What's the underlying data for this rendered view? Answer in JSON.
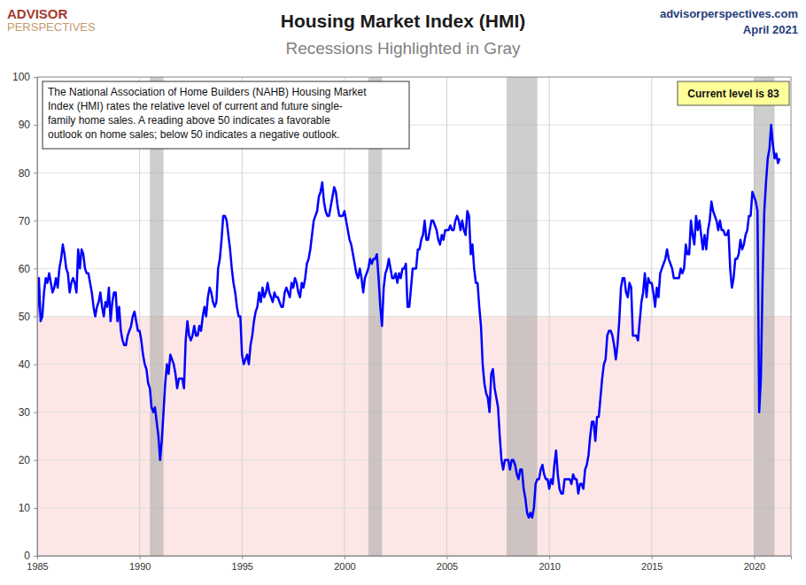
{
  "chart_data": {
    "type": "line",
    "title": "Housing Market Index (HMI)",
    "subtitle": "Recessions Highlighted in Gray",
    "logo": [
      "ADVISOR",
      "PERSPECTIVES"
    ],
    "source": "advisorperspectives.com",
    "date": "April 2021",
    "note_lines": [
      "The National Association of Home Builders (NAHB) Housing Market",
      "Index (HMI) rates the relative level of current and future single-",
      "family home sales. A reading above 50 indicates a favorable",
      "outlook on home sales; below 50 indicates a negative outlook."
    ],
    "callout": "Current level is 83",
    "color": "#0000ff",
    "grid": true,
    "threshold": 50,
    "recessions": [
      {
        "start": 1990.5,
        "end": 1991.167
      },
      {
        "start": 2001.167,
        "end": 2001.833
      },
      {
        "start": 2007.917,
        "end": 2009.417
      },
      {
        "start": 2020.0,
        "end": 2021.0
      }
    ],
    "xlim": [
      1985,
      2021.8
    ],
    "xticks": [
      1985,
      1990,
      1995,
      2000,
      2005,
      2010,
      2015,
      2020
    ],
    "ylim": [
      0,
      100
    ],
    "yticks": [
      0,
      10,
      20,
      30,
      40,
      50,
      60,
      70,
      80,
      90,
      100
    ],
    "x": [
      1985,
      1985.083,
      1985.167,
      1985.25,
      1985.333,
      1985.417,
      1985.5,
      1985.583,
      1985.667,
      1985.75,
      1985.833,
      1985.917,
      1986,
      1986.083,
      1986.167,
      1986.25,
      1986.333,
      1986.417,
      1986.5,
      1986.583,
      1986.667,
      1986.75,
      1986.833,
      1986.917,
      1987,
      1987.083,
      1987.167,
      1987.25,
      1987.333,
      1987.417,
      1987.5,
      1987.583,
      1987.667,
      1987.75,
      1987.833,
      1987.917,
      1988,
      1988.083,
      1988.167,
      1988.25,
      1988.333,
      1988.417,
      1988.5,
      1988.583,
      1988.667,
      1988.75,
      1988.833,
      1988.917,
      1989,
      1989.083,
      1989.167,
      1989.25,
      1989.333,
      1989.417,
      1989.5,
      1989.583,
      1989.667,
      1989.75,
      1989.833,
      1989.917,
      1990,
      1990.083,
      1990.167,
      1990.25,
      1990.333,
      1990.417,
      1990.5,
      1990.583,
      1990.667,
      1990.75,
      1990.833,
      1990.917,
      1991,
      1991.083,
      1991.167,
      1991.25,
      1991.333,
      1991.417,
      1991.5,
      1991.583,
      1991.667,
      1991.75,
      1991.833,
      1991.917,
      1992,
      1992.083,
      1992.167,
      1992.25,
      1992.333,
      1992.417,
      1992.5,
      1992.583,
      1992.667,
      1992.75,
      1992.833,
      1992.917,
      1993,
      1993.083,
      1993.167,
      1993.25,
      1993.333,
      1993.417,
      1993.5,
      1993.583,
      1993.667,
      1993.75,
      1993.833,
      1993.917,
      1994,
      1994.083,
      1994.167,
      1994.25,
      1994.333,
      1994.417,
      1994.5,
      1994.583,
      1994.667,
      1994.75,
      1994.833,
      1994.917,
      1995,
      1995.083,
      1995.167,
      1995.25,
      1995.333,
      1995.417,
      1995.5,
      1995.583,
      1995.667,
      1995.75,
      1995.833,
      1995.917,
      1996,
      1996.083,
      1996.167,
      1996.25,
      1996.333,
      1996.417,
      1996.5,
      1996.583,
      1996.667,
      1996.75,
      1996.833,
      1996.917,
      1997,
      1997.083,
      1997.167,
      1997.25,
      1997.333,
      1997.417,
      1997.5,
      1997.583,
      1997.667,
      1997.75,
      1997.833,
      1997.917,
      1998,
      1998.083,
      1998.167,
      1998.25,
      1998.333,
      1998.417,
      1998.5,
      1998.583,
      1998.667,
      1998.75,
      1998.833,
      1998.917,
      1999,
      1999.083,
      1999.167,
      1999.25,
      1999.333,
      1999.417,
      1999.5,
      1999.583,
      1999.667,
      1999.75,
      1999.833,
      1999.917,
      2000,
      2000.083,
      2000.167,
      2000.25,
      2000.333,
      2000.417,
      2000.5,
      2000.583,
      2000.667,
      2000.75,
      2000.833,
      2000.917,
      2001,
      2001.083,
      2001.167,
      2001.25,
      2001.333,
      2001.417,
      2001.5,
      2001.583,
      2001.667,
      2001.75,
      2001.833,
      2001.917,
      2002,
      2002.083,
      2002.167,
      2002.25,
      2002.333,
      2002.417,
      2002.5,
      2002.583,
      2002.667,
      2002.75,
      2002.833,
      2002.917,
      2003,
      2003.083,
      2003.167,
      2003.25,
      2003.333,
      2003.417,
      2003.5,
      2003.583,
      2003.667,
      2003.75,
      2003.833,
      2003.917,
      2004,
      2004.083,
      2004.167,
      2004.25,
      2004.333,
      2004.417,
      2004.5,
      2004.583,
      2004.667,
      2004.75,
      2004.833,
      2004.917,
      2005,
      2005.083,
      2005.167,
      2005.25,
      2005.333,
      2005.417,
      2005.5,
      2005.583,
      2005.667,
      2005.75,
      2005.833,
      2005.917,
      2006,
      2006.083,
      2006.167,
      2006.25,
      2006.333,
      2006.417,
      2006.5,
      2006.583,
      2006.667,
      2006.75,
      2006.833,
      2006.917,
      2007,
      2007.083,
      2007.167,
      2007.25,
      2007.333,
      2007.417,
      2007.5,
      2007.583,
      2007.667,
      2007.75,
      2007.833,
      2007.917,
      2008,
      2008.083,
      2008.167,
      2008.25,
      2008.333,
      2008.417,
      2008.5,
      2008.583,
      2008.667,
      2008.75,
      2008.833,
      2008.917,
      2009,
      2009.083,
      2009.167,
      2009.25,
      2009.333,
      2009.417,
      2009.5,
      2009.583,
      2009.667,
      2009.75,
      2009.833,
      2009.917,
      2010,
      2010.083,
      2010.167,
      2010.25,
      2010.333,
      2010.417,
      2010.5,
      2010.583,
      2010.667,
      2010.75,
      2010.833,
      2010.917,
      2011,
      2011.083,
      2011.167,
      2011.25,
      2011.333,
      2011.417,
      2011.5,
      2011.583,
      2011.667,
      2011.75,
      2011.833,
      2011.917,
      2012,
      2012.083,
      2012.167,
      2012.25,
      2012.333,
      2012.417,
      2012.5,
      2012.583,
      2012.667,
      2012.75,
      2012.833,
      2012.917,
      2013,
      2013.083,
      2013.167,
      2013.25,
      2013.333,
      2013.417,
      2013.5,
      2013.583,
      2013.667,
      2013.75,
      2013.833,
      2013.917,
      2014,
      2014.083,
      2014.167,
      2014.25,
      2014.333,
      2014.417,
      2014.5,
      2014.583,
      2014.667,
      2014.75,
      2014.833,
      2014.917,
      2015,
      2015.083,
      2015.167,
      2015.25,
      2015.333,
      2015.417,
      2015.5,
      2015.583,
      2015.667,
      2015.75,
      2015.833,
      2015.917,
      2016,
      2016.083,
      2016.167,
      2016.25,
      2016.333,
      2016.417,
      2016.5,
      2016.583,
      2016.667,
      2016.75,
      2016.833,
      2016.917,
      2017,
      2017.083,
      2017.167,
      2017.25,
      2017.333,
      2017.417,
      2017.5,
      2017.583,
      2017.667,
      2017.75,
      2017.833,
      2017.917,
      2018,
      2018.083,
      2018.167,
      2018.25,
      2018.333,
      2018.417,
      2018.5,
      2018.583,
      2018.667,
      2018.75,
      2018.833,
      2018.917,
      2019,
      2019.083,
      2019.167,
      2019.25,
      2019.333,
      2019.417,
      2019.5,
      2019.583,
      2019.667,
      2019.75,
      2019.833,
      2019.917,
      2020,
      2020.083,
      2020.167,
      2020.25,
      2020.333,
      2020.417,
      2020.5,
      2020.583,
      2020.667,
      2020.75,
      2020.833,
      2020.917,
      2021,
      2021.083,
      2021.167,
      2021.25
    ],
    "values": [
      50,
      58,
      49,
      50,
      55,
      58,
      57,
      59,
      57,
      55,
      56,
      58,
      56,
      60,
      62,
      65,
      63,
      60,
      59,
      55,
      57,
      58,
      57,
      55,
      64,
      60,
      64,
      63,
      60,
      59,
      59,
      57,
      55,
      52,
      50,
      52,
      53,
      55,
      52,
      50,
      53,
      52,
      56,
      49,
      53,
      55,
      55,
      49,
      52,
      47,
      45,
      44,
      44,
      46,
      47,
      48,
      50,
      51,
      49,
      47,
      47,
      45,
      42,
      40,
      39,
      36,
      35,
      31,
      30,
      31,
      28,
      25,
      20,
      24,
      30,
      36,
      40,
      38,
      42,
      41,
      40,
      38,
      35,
      37,
      37,
      37,
      35,
      45,
      49,
      46,
      45,
      46,
      48,
      46,
      46,
      48,
      47,
      50,
      52,
      50,
      54,
      56,
      55,
      53,
      52,
      53,
      60,
      62,
      66,
      71,
      71,
      70,
      67,
      64,
      60,
      57,
      55,
      52,
      50,
      50,
      42,
      40,
      41,
      42,
      40,
      44,
      46,
      49,
      51,
      52,
      55,
      53,
      56,
      54,
      55,
      57,
      55,
      54,
      53,
      55,
      54,
      54,
      53,
      52,
      52,
      55,
      56,
      55,
      54,
      57,
      56,
      58,
      57,
      55,
      54,
      57,
      56,
      58,
      61,
      62,
      64,
      67,
      70,
      71,
      72,
      75,
      76,
      78,
      74,
      72,
      71,
      71,
      73,
      75,
      77,
      76,
      73,
      71,
      71,
      71,
      72,
      70,
      68,
      66,
      65,
      63,
      61,
      59,
      58,
      60,
      58,
      55,
      58,
      59,
      60,
      62,
      61,
      62,
      62,
      63,
      58,
      52,
      48,
      56,
      59,
      60,
      62,
      60,
      58,
      58,
      59,
      57,
      59,
      58,
      60,
      60,
      61,
      52,
      52,
      56,
      60,
      60,
      60,
      64,
      64,
      66,
      67,
      70,
      66,
      66,
      68,
      70,
      70,
      69,
      68,
      66,
      65,
      67,
      66,
      68,
      68,
      68,
      69,
      68,
      68,
      70,
      71,
      70,
      68,
      70,
      68,
      67,
      72,
      71,
      63,
      65,
      60,
      57,
      57,
      52,
      48,
      40,
      36,
      34,
      33,
      30,
      38,
      39,
      35,
      33,
      31,
      25,
      20,
      18,
      20,
      20,
      20,
      18,
      20,
      20,
      19,
      17,
      16,
      18,
      18,
      14,
      12,
      9,
      8,
      9,
      8,
      10,
      15,
      16,
      16,
      18,
      19,
      17,
      16,
      16,
      14,
      16,
      15,
      19,
      22,
      17,
      14,
      13,
      13,
      16,
      16,
      16,
      16,
      15,
      17,
      16,
      16,
      13,
      15,
      15,
      14,
      18,
      19,
      21,
      25,
      28,
      28,
      24,
      29,
      29,
      33,
      37,
      40,
      41,
      46,
      47,
      47,
      46,
      44,
      41,
      44,
      49,
      56,
      58,
      58,
      55,
      54,
      57,
      56,
      46,
      46,
      46,
      45,
      49,
      53,
      55,
      59,
      54,
      58,
      57,
      57,
      55,
      52,
      56,
      54,
      59,
      60,
      61,
      62,
      64,
      62,
      61,
      60,
      58,
      58,
      58,
      58,
      60,
      59,
      60,
      65,
      63,
      63,
      70,
      67,
      65,
      71,
      68,
      70,
      67,
      64,
      67,
      64,
      68,
      70,
      74,
      72,
      71,
      70,
      68,
      70,
      68,
      68,
      67,
      67,
      68,
      60,
      56,
      58,
      62,
      62,
      63,
      66,
      64,
      65,
      67,
      68,
      71,
      71,
      76,
      75,
      74,
      72,
      30,
      37,
      58,
      72,
      78,
      83,
      85,
      90,
      86,
      83,
      84,
      82,
      83
    ]
  }
}
